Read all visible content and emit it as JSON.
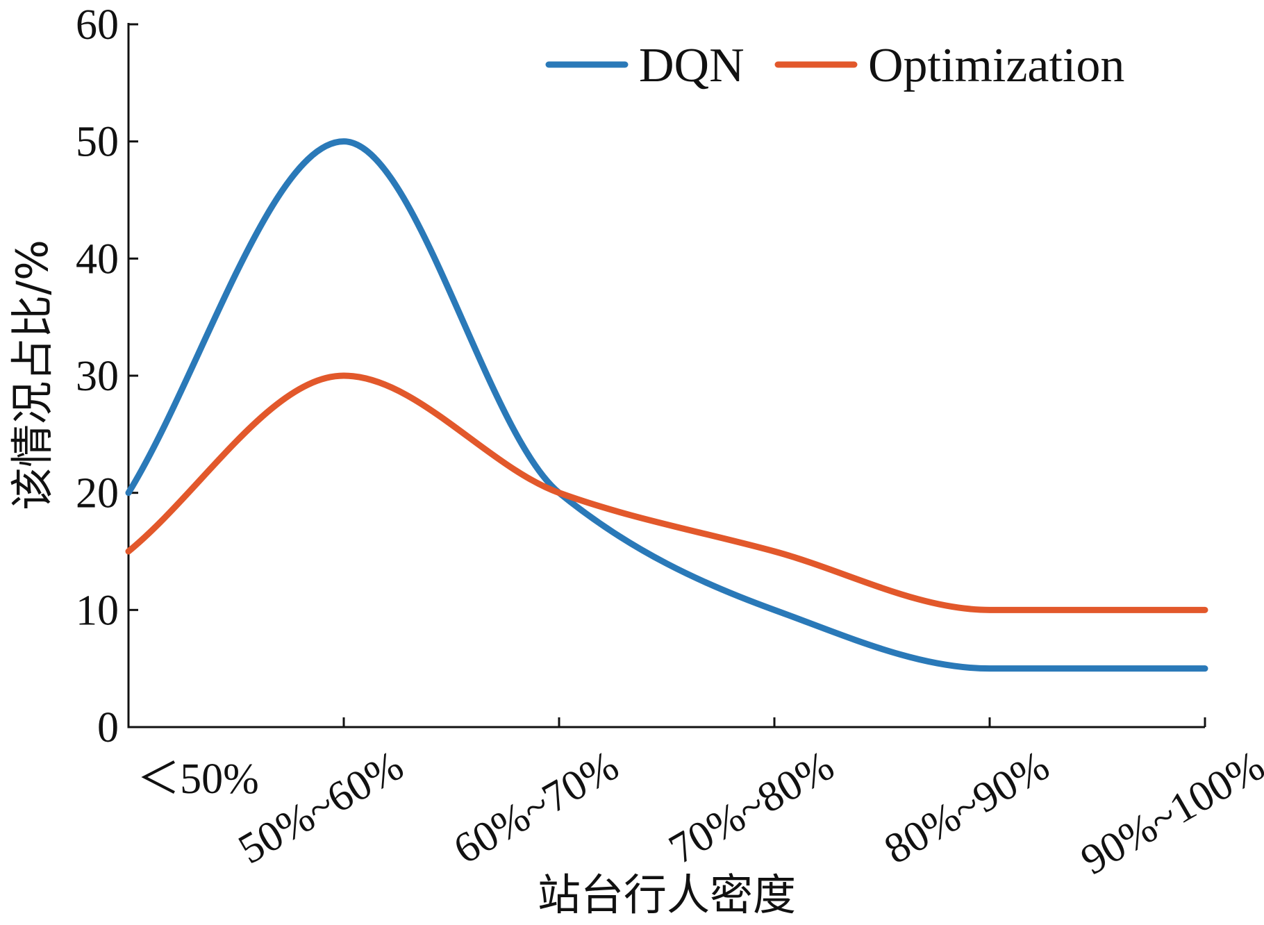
{
  "chart_data": {
    "type": "line",
    "categories": [
      "＜50%",
      "50%~60%",
      "60%~70%",
      "70%~80%",
      "80%~90%",
      "90%~100%"
    ],
    "series": [
      {
        "name": "DQN",
        "values": [
          20,
          50,
          20,
          10,
          5,
          5
        ],
        "color": "#2a79b8"
      },
      {
        "name": "Optimization",
        "values": [
          15,
          30,
          20,
          15,
          10,
          10
        ],
        "color": "#e2582b"
      }
    ],
    "title": "",
    "xlabel": "站台行人密度",
    "ylabel": "该情况占比/%",
    "ylim": [
      0,
      60
    ],
    "yticks": [
      0,
      10,
      20,
      30,
      40,
      50,
      60
    ],
    "grid": false,
    "legend_position": "top-right",
    "axis_color": "#111111"
  }
}
